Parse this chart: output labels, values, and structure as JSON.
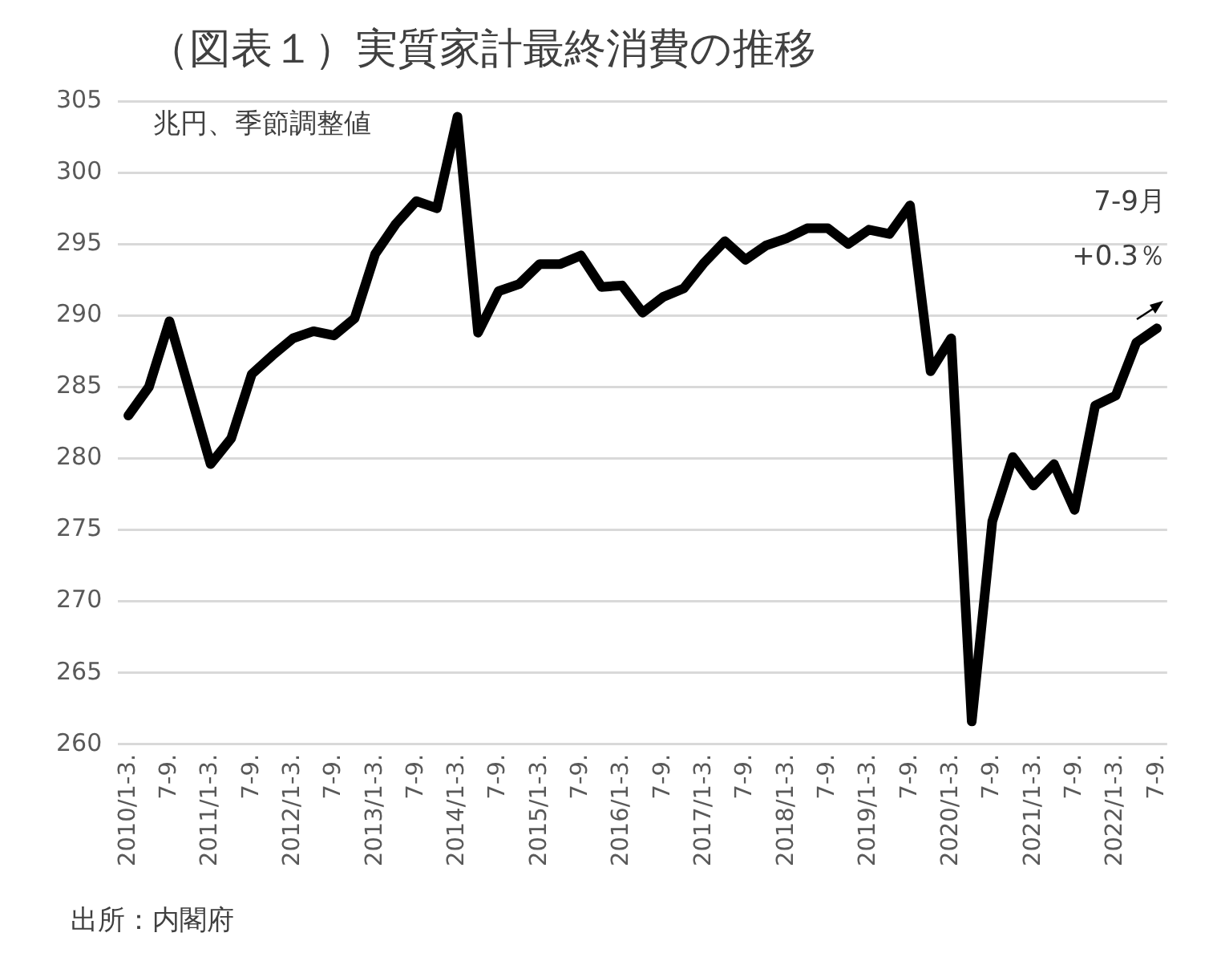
{
  "chart_data": {
    "type": "line",
    "title": "（図表１）実質家計最終消費の推移",
    "categories": [
      "2010/1-3.",
      null,
      "7-9.",
      null,
      "2011/1-3.",
      null,
      "7-9.",
      null,
      "2012/1-3.",
      null,
      "7-9.",
      null,
      "2013/1-3.",
      null,
      "7-9.",
      null,
      "2014/1-3.",
      null,
      "7-9.",
      null,
      "2015/1-3.",
      null,
      "7-9.",
      null,
      "2016/1-3.",
      null,
      "7-9.",
      null,
      "2017/1-3.",
      null,
      "7-9.",
      null,
      "2018/1-3.",
      null,
      "7-9.",
      null,
      "2019/1-3.",
      null,
      "7-9.",
      null,
      "2020/1-3.",
      null,
      "7-9.",
      null,
      "2021/1-3.",
      null,
      "7-9.",
      null,
      "2022/1-3.",
      null,
      "7-9."
    ],
    "series": [
      {
        "color": "#000000",
        "values": [
          283.0,
          285.0,
          289.6,
          284.6,
          279.6,
          281.4,
          285.9,
          287.2,
          288.4,
          288.9,
          288.6,
          289.8,
          294.3,
          296.4,
          298.0,
          297.5,
          303.9,
          288.8,
          291.7,
          292.2,
          293.6,
          293.6,
          294.2,
          292.0,
          292.1,
          290.2,
          291.3,
          291.9,
          293.7,
          295.2,
          293.9,
          294.9,
          295.4,
          296.1,
          296.1,
          295.0,
          296.0,
          295.7,
          297.7,
          286.1,
          288.4,
          261.6,
          275.6,
          280.1,
          278.1,
          279.6,
          276.4,
          283.7,
          284.4,
          288.1,
          289.1
        ]
      }
    ],
    "ylim": [
      260,
      305
    ],
    "yticks": [
      260,
      265,
      270,
      275,
      280,
      285,
      290,
      295,
      300,
      305
    ],
    "grid": "y",
    "marker": "none",
    "line_style": "solid",
    "annotations": [
      "兆円、季節調整値",
      "7-9月",
      "+0.3％",
      "出所：内閣府"
    ]
  }
}
